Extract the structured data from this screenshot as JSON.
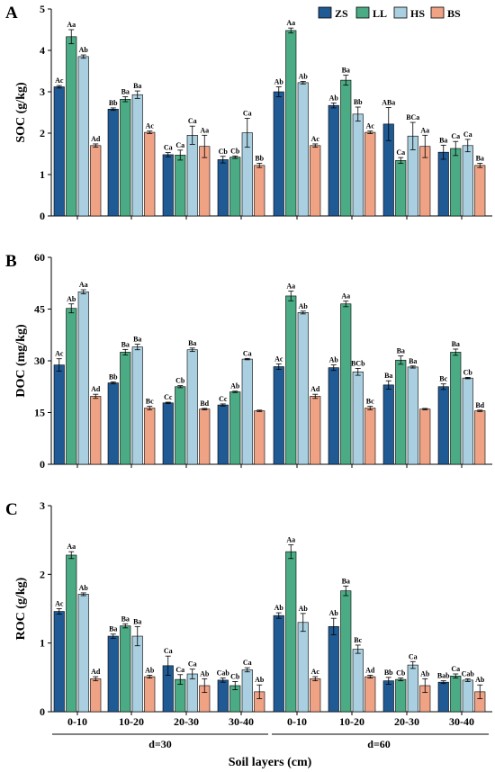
{
  "colors": {
    "ZS": "#1f5a94",
    "LL": "#4bab84",
    "HS": "#a9cfe0",
    "BS": "#f0a285"
  },
  "legend": [
    "ZS",
    "LL",
    "HS",
    "BS"
  ],
  "xaxis": {
    "categories": [
      "0-10",
      "10-20",
      "20-30",
      "30-40",
      "0-10",
      "10-20",
      "20-30",
      "30-40"
    ],
    "groups": [
      "d=30",
      "d=60"
    ],
    "label": "Soil layers (cm)"
  },
  "chart_data": [
    {
      "type": "bar",
      "panel": "A",
      "ylabel": "SOC (g/kg)",
      "ylim": [
        0,
        5
      ],
      "yticks": [
        0,
        1,
        2,
        3,
        4,
        5
      ],
      "categories": [
        "0-10",
        "10-20",
        "20-30",
        "30-40",
        "0-10",
        "10-20",
        "20-30",
        "30-40"
      ],
      "series": [
        {
          "name": "ZS",
          "values": [
            3.12,
            2.58,
            1.48,
            1.36,
            3.0,
            2.67,
            2.22,
            1.54
          ],
          "errors": [
            0.03,
            0.03,
            0.05,
            0.08,
            0.12,
            0.06,
            0.4,
            0.17
          ],
          "labels": [
            "Ac",
            "Bb",
            "Ca",
            "Cb",
            "Ab",
            "Ab",
            "ABa",
            "Ba"
          ]
        },
        {
          "name": "LL",
          "values": [
            4.33,
            2.82,
            1.47,
            1.42,
            4.48,
            3.28,
            1.34,
            1.63
          ],
          "errors": [
            0.17,
            0.06,
            0.12,
            0.03,
            0.06,
            0.12,
            0.07,
            0.17
          ],
          "labels": [
            "Aa",
            "Ba",
            "Ca",
            "Cb",
            "Aa",
            "Ba",
            "Ca",
            "Ca"
          ]
        },
        {
          "name": "HS",
          "values": [
            3.85,
            2.93,
            1.95,
            2.01,
            3.22,
            2.46,
            1.93,
            1.7
          ],
          "errors": [
            0.04,
            0.09,
            0.22,
            0.35,
            0.03,
            0.17,
            0.33,
            0.15
          ],
          "labels": [
            "Ab",
            "Ba",
            "Ca",
            "Ca",
            "Ab",
            "Bb",
            "BCa",
            "Ca"
          ]
        },
        {
          "name": "BS",
          "values": [
            1.7,
            2.02,
            1.68,
            1.22,
            1.7,
            2.02,
            1.68,
            1.22
          ],
          "errors": [
            0.04,
            0.03,
            0.27,
            0.05,
            0.04,
            0.03,
            0.27,
            0.05
          ],
          "labels": [
            "Ad",
            "Ac",
            "Aa",
            "Bb",
            "Ac",
            "Ac",
            "Aa",
            "Ba"
          ]
        }
      ]
    },
    {
      "type": "bar",
      "panel": "B",
      "ylabel": "DOC (mg/kg)",
      "ylim": [
        0,
        60
      ],
      "yticks": [
        0,
        15,
        30,
        45,
        60
      ],
      "categories": [
        "0-10",
        "10-20",
        "20-30",
        "30-40",
        "0-10",
        "10-20",
        "20-30",
        "30-40"
      ],
      "series": [
        {
          "name": "ZS",
          "values": [
            28.8,
            23.6,
            17.8,
            17.2,
            28.3,
            28.0,
            23.0,
            22.5
          ],
          "errors": [
            1.8,
            0.3,
            0.2,
            0.3,
            0.8,
            0.8,
            1.2,
            0.8
          ],
          "labels": [
            "Ac",
            "Bb",
            "Cc",
            "Cc",
            "Ac",
            "Ab",
            "Ba",
            "Bc"
          ]
        },
        {
          "name": "LL",
          "values": [
            45.2,
            32.5,
            22.5,
            21.0,
            48.8,
            46.5,
            30.2,
            32.5
          ],
          "errors": [
            1.3,
            0.8,
            0.3,
            0.2,
            1.4,
            0.8,
            1.2,
            0.9
          ],
          "labels": [
            "Ab",
            "Ba",
            "Cb",
            "Ab",
            "Aa",
            "Aa",
            "Ba",
            "Ba"
          ]
        },
        {
          "name": "HS",
          "values": [
            50.0,
            34.0,
            33.2,
            30.5,
            44.0,
            26.8,
            28.2,
            25.0
          ],
          "errors": [
            0.6,
            0.8,
            0.5,
            0.2,
            0.4,
            1.0,
            0.3,
            0.2
          ],
          "labels": [
            "Aa",
            "Ba",
            "Ba",
            "Ca",
            "Ab",
            "BCb",
            "Ba",
            "Cb"
          ]
        },
        {
          "name": "BS",
          "values": [
            19.7,
            16.3,
            16.0,
            15.5,
            19.7,
            16.3,
            16.0,
            15.5
          ],
          "errors": [
            0.6,
            0.5,
            0.2,
            0.2,
            0.6,
            0.5,
            0.2,
            0.2
          ],
          "labels": [
            "Ad",
            "Bc",
            "Bd",
            "",
            "Ad",
            "Bc",
            "",
            "Bd"
          ]
        }
      ]
    },
    {
      "type": "bar",
      "panel": "C",
      "ylabel": "ROC (g/kg)",
      "ylim": [
        0,
        3
      ],
      "yticks": [
        0,
        1,
        2,
        3
      ],
      "categories": [
        "0-10",
        "10-20",
        "20-30",
        "30-40",
        "0-10",
        "10-20",
        "20-30",
        "30-40"
      ],
      "series": [
        {
          "name": "ZS",
          "values": [
            1.46,
            1.1,
            0.67,
            0.46,
            1.4,
            1.24,
            0.45,
            0.43
          ],
          "errors": [
            0.04,
            0.03,
            0.14,
            0.03,
            0.04,
            0.12,
            0.05,
            0.02
          ],
          "labels": [
            "Ac",
            "Ba",
            "Ca",
            "Cab",
            "Ab",
            "Ab",
            "Bb",
            "Bab"
          ]
        },
        {
          "name": "LL",
          "values": [
            2.28,
            1.25,
            0.47,
            0.38,
            2.33,
            1.76,
            0.47,
            0.52
          ],
          "errors": [
            0.05,
            0.03,
            0.07,
            0.06,
            0.1,
            0.07,
            0.02,
            0.03
          ],
          "labels": [
            "Aa",
            "Ba",
            "Ca",
            "Cb",
            "Aa",
            "Ba",
            "Cb",
            "Ca"
          ]
        },
        {
          "name": "HS",
          "values": [
            1.71,
            1.1,
            0.55,
            0.61,
            1.3,
            0.91,
            0.68,
            0.46
          ],
          "errors": [
            0.02,
            0.14,
            0.07,
            0.03,
            0.13,
            0.06,
            0.05,
            0.02
          ],
          "labels": [
            "Ab",
            "Ba",
            "Ca",
            "Ca",
            "Ab",
            "Bc",
            "Ca",
            "Cab"
          ]
        },
        {
          "name": "BS",
          "values": [
            0.48,
            0.51,
            0.38,
            0.29,
            0.48,
            0.51,
            0.38,
            0.29
          ],
          "errors": [
            0.03,
            0.02,
            0.1,
            0.1,
            0.03,
            0.02,
            0.1,
            0.1
          ],
          "labels": [
            "Ad",
            "Ab",
            "Ab",
            "Ab",
            "Ac",
            "Ad",
            "Ab",
            "Ab"
          ]
        }
      ]
    }
  ]
}
